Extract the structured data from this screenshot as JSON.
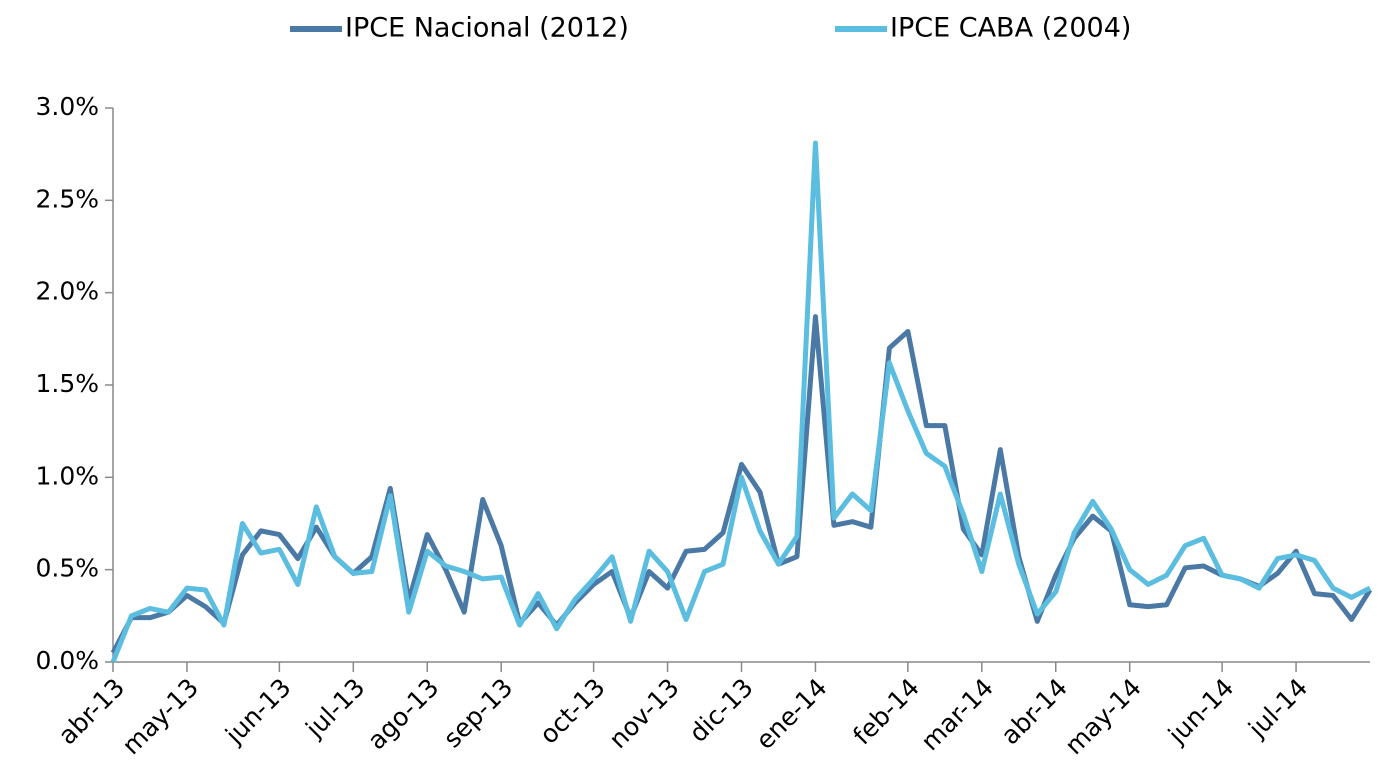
{
  "chart_data": {
    "type": "line",
    "categories": [
      "abr-13",
      null,
      null,
      null,
      "may-13",
      null,
      null,
      null,
      null,
      "jun-13",
      null,
      null,
      null,
      "jul-13",
      null,
      null,
      null,
      "ago-13",
      null,
      null,
      null,
      "sep-13",
      null,
      null,
      null,
      null,
      "oct-13",
      null,
      null,
      null,
      "nov-13",
      null,
      null,
      null,
      "dic-13",
      null,
      null,
      null,
      "ene-14",
      null,
      null,
      null,
      null,
      "feb-14",
      null,
      null,
      null,
      "mar-14",
      null,
      null,
      null,
      "abr-14",
      null,
      null,
      null,
      "may-14",
      null,
      null,
      null,
      null,
      "jun-14",
      null,
      null,
      null,
      "jul-14",
      null,
      null,
      null,
      null
    ],
    "series": [
      {
        "name": "IPCE Nacional (2012)",
        "color": "#4a79a5",
        "values": [
          0.05,
          0.24,
          0.24,
          0.27,
          0.36,
          0.3,
          0.21,
          0.58,
          0.71,
          0.69,
          0.56,
          0.73,
          0.57,
          0.48,
          0.57,
          0.94,
          0.33,
          0.69,
          0.5,
          0.27,
          0.88,
          0.63,
          0.21,
          0.32,
          0.2,
          0.32,
          0.42,
          0.49,
          0.24,
          0.49,
          0.4,
          0.6,
          0.61,
          0.7,
          1.07,
          0.92,
          0.53,
          0.57,
          1.87,
          0.74,
          0.76,
          0.73,
          1.7,
          1.79,
          1.28,
          1.28,
          0.72,
          0.58,
          1.15,
          0.57,
          0.22,
          0.47,
          0.67,
          0.79,
          0.71,
          0.31,
          0.3,
          0.31,
          0.51,
          0.52,
          0.47,
          0.45,
          0.41,
          0.48,
          0.6,
          0.37,
          0.36,
          0.23,
          0.39
        ]
      },
      {
        "name": "IPCE CABA (2004)",
        "color": "#5bbde0",
        "values": [
          0.0,
          0.25,
          0.29,
          0.27,
          0.4,
          0.39,
          0.2,
          0.75,
          0.59,
          0.61,
          0.42,
          0.84,
          0.57,
          0.48,
          0.49,
          0.9,
          0.27,
          0.6,
          0.52,
          0.49,
          0.45,
          0.46,
          0.2,
          0.37,
          0.18,
          0.34,
          0.45,
          0.57,
          0.22,
          0.6,
          0.49,
          0.23,
          0.49,
          0.53,
          1.0,
          0.71,
          0.53,
          0.68,
          2.81,
          0.78,
          0.91,
          0.82,
          1.62,
          1.36,
          1.13,
          1.06,
          0.8,
          0.49,
          0.91,
          0.53,
          0.26,
          0.38,
          0.7,
          0.87,
          0.72,
          0.5,
          0.42,
          0.47,
          0.63,
          0.67,
          0.47,
          0.45,
          0.4,
          0.56,
          0.58,
          0.55,
          0.4,
          0.35,
          0.4
        ]
      }
    ],
    "ylim": [
      0,
      3
    ],
    "yticks": [
      {
        "value": 0,
        "label": "0.0%"
      },
      {
        "value": 0.5,
        "label": "0.5%"
      },
      {
        "value": 1,
        "label": "1.0%"
      },
      {
        "value": 1.5,
        "label": "1.5%"
      },
      {
        "value": 2,
        "label": "2.0%"
      },
      {
        "value": 2.5,
        "label": "2.5%"
      },
      {
        "value": 3,
        "label": "3.0%"
      }
    ],
    "grid": false,
    "legend": "top"
  }
}
